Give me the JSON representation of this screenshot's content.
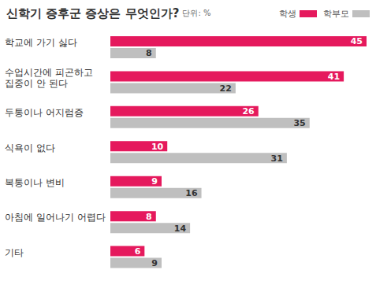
{
  "chart_data": {
    "type": "bar",
    "orientation": "horizontal",
    "title": "신학기 증후군 증상은 무엇인가?",
    "unit": "단위: %",
    "categories": [
      "학교에 가기 싫다",
      "수업시간에 피곤하고\n집중이 안 된다",
      "두통이나 어지럼증",
      "식욕이 없다",
      "복통이나 변비",
      "아침에 일어나기 어렵다",
      "기타"
    ],
    "series": [
      {
        "name": "학생",
        "color": "#e5195d",
        "values": [
          45,
          41,
          26,
          10,
          9,
          8,
          6
        ]
      },
      {
        "name": "학부모",
        "color": "#bfbfbf",
        "values": [
          8,
          22,
          35,
          31,
          16,
          14,
          9
        ]
      }
    ],
    "xlim": [
      0,
      45
    ],
    "tick_labels": false,
    "data_labels": true,
    "grid": false,
    "legend": "top right"
  }
}
